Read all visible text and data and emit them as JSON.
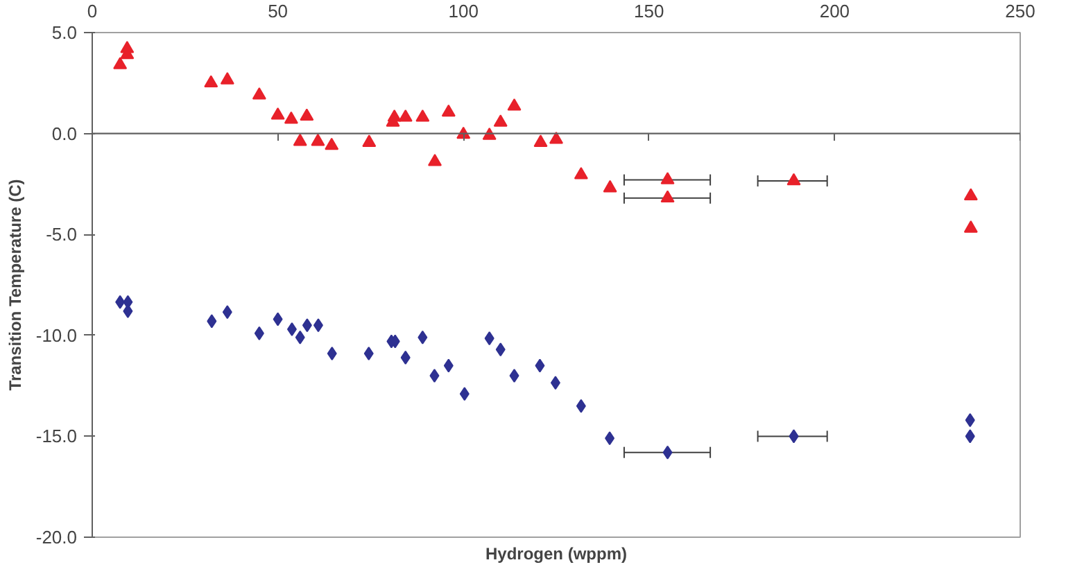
{
  "chart_data": {
    "type": "scatter",
    "xlabel": "Hydrogen (wppm)",
    "ylabel": "Transition Temperature (C)",
    "xlim": [
      0,
      250
    ],
    "xticks": [
      0,
      50,
      100,
      150,
      200,
      250
    ],
    "ylim": [
      -20,
      5
    ],
    "yticks": [
      {
        "value": -20,
        "label": "-20.0"
      },
      {
        "value": -15,
        "label": "-15.0"
      },
      {
        "value": -10,
        "label": "-10.0"
      },
      {
        "value": -5,
        "label": "-5.0"
      },
      {
        "value": 0,
        "label": "0.0"
      },
      {
        "value": 5,
        "label": "5.0"
      }
    ],
    "ref_lines": [
      {
        "axis": "y",
        "value": 0
      }
    ],
    "series": [
      {
        "color": "#e8212a",
        "marker": "triangle",
        "x": [
          7.5,
          9.4,
          9.4,
          32,
          36.4,
          45,
          50,
          53.6,
          57.8,
          56,
          60.8,
          64.5,
          74.6,
          81,
          81.4,
          84.4,
          89,
          96,
          92.3,
          100,
          107,
          110,
          113.7,
          120.8,
          125,
          131.7,
          139.5,
          155,
          155,
          189,
          236.7,
          236.7
        ],
        "values": [
          3.4,
          3.9,
          4.2,
          2.5,
          2.65,
          1.9,
          0.9,
          0.7,
          0.85,
          -0.4,
          -0.4,
          -0.6,
          -0.45,
          0.55,
          0.8,
          0.8,
          0.8,
          1.05,
          -1.4,
          -0.05,
          -0.1,
          0.55,
          1.35,
          -0.45,
          -0.3,
          -2.05,
          -2.7,
          -2.3,
          -3.2,
          -2.35,
          -3.1,
          -4.7
        ],
        "xerrors": [
          null,
          null,
          null,
          null,
          null,
          null,
          null,
          null,
          null,
          null,
          null,
          null,
          null,
          null,
          null,
          null,
          null,
          null,
          null,
          null,
          null,
          null,
          null,
          null,
          null,
          null,
          null,
          [
            143.3,
            166.5
          ],
          [
            143.3,
            166.5
          ],
          [
            179.3,
            198
          ],
          null,
          null
        ]
      },
      {
        "color": "#2e3192",
        "marker": "diamond",
        "x": [
          7.5,
          9.6,
          9.6,
          32.2,
          36.4,
          45,
          50,
          53.8,
          56,
          57.9,
          60.9,
          64.6,
          74.5,
          80.6,
          81.6,
          84.4,
          89,
          92.2,
          96,
          100.3,
          107,
          110,
          113.7,
          120.6,
          124.8,
          131.7,
          139.4,
          155,
          189,
          236.5,
          236.5
        ],
        "values": [
          -8.35,
          -8.35,
          -8.8,
          -9.3,
          -8.85,
          -9.9,
          -9.2,
          -9.7,
          -10.1,
          -9.5,
          -9.5,
          -10.9,
          -10.9,
          -10.3,
          -10.3,
          -11.1,
          -10.1,
          -12.0,
          -11.5,
          -12.9,
          -10.15,
          -10.7,
          -12.0,
          -11.5,
          -12.35,
          -13.5,
          -15.1,
          -15.8,
          -15.0,
          -14.2,
          -15.0
        ],
        "xerrors": [
          null,
          null,
          null,
          null,
          null,
          null,
          null,
          null,
          null,
          null,
          null,
          null,
          null,
          null,
          null,
          null,
          null,
          null,
          null,
          null,
          null,
          null,
          null,
          null,
          null,
          null,
          null,
          [
            143.3,
            166.5
          ],
          [
            179.3,
            198
          ],
          null,
          null
        ]
      }
    ]
  }
}
